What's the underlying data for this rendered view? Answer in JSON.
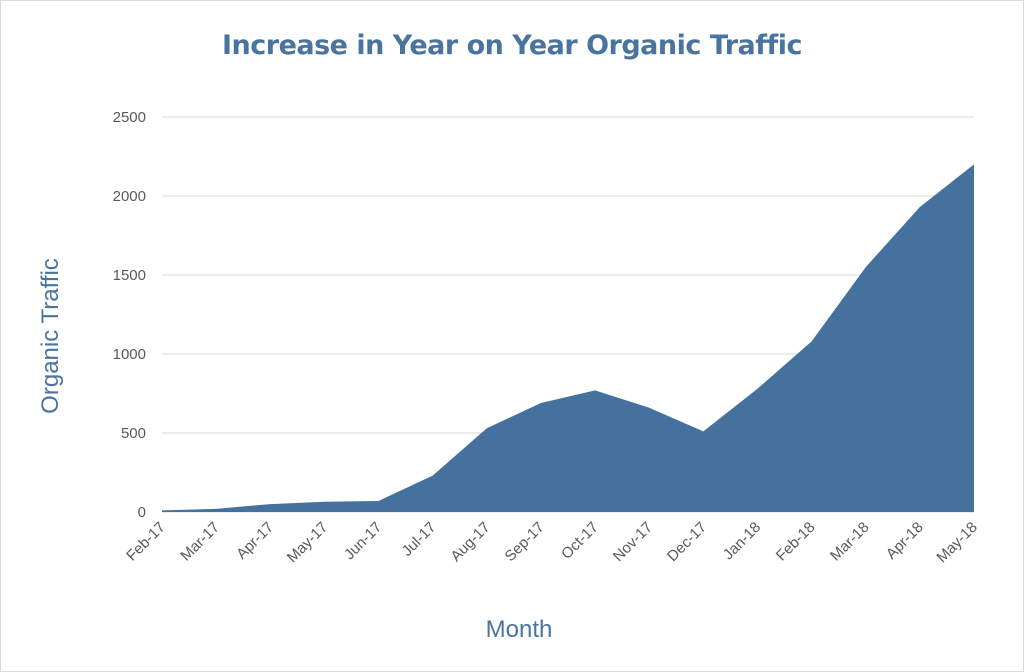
{
  "chart_data": {
    "type": "area",
    "title": "Increase in Year on Year Organic Traffic",
    "xlabel": "Month",
    "ylabel": "Organic Traffic",
    "categories": [
      "Feb-17",
      "Mar-17",
      "Apr-17",
      "May-17",
      "Jun-17",
      "Jul-17",
      "Aug-17",
      "Sep-17",
      "Oct-17",
      "Nov-17",
      "Dec-17",
      "Jan-18",
      "Feb-18",
      "Mar-18",
      "Apr-18",
      "May-18"
    ],
    "series": [
      {
        "values": [
          10,
          20,
          50,
          65,
          70,
          230,
          530,
          690,
          770,
          660,
          510,
          780,
          1080,
          1550,
          1930,
          2200
        ]
      }
    ],
    "ylim": [
      0,
      2500
    ],
    "yticks": [
      "0",
      "500",
      "1000",
      "1500",
      "2000",
      "2500"
    ],
    "grid": true,
    "legend": "none",
    "colors": {
      "fill": "#45719e",
      "title": "#4a74a0",
      "grid": "#d9d9d9",
      "tick": "#595959"
    }
  }
}
